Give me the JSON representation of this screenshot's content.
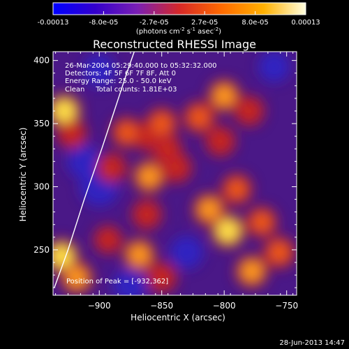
{
  "colorbar": {
    "tick_labels": [
      "-0.00013",
      "-8.0e-05",
      "-2.7e-05",
      "2.7e-05",
      "8.0e-05",
      "0.00013"
    ],
    "unit_label": "(photons cm",
    "unit_sup1": "-2",
    "unit_mid": " s",
    "unit_sup2": "-1",
    "unit_tail": " asec",
    "unit_sup3": "-2",
    "unit_close": ")",
    "colors": [
      "#0000ff",
      "#3300cc",
      "#7a1fb4",
      "#d62828",
      "#ff6a00",
      "#ffb000",
      "#ffffe0"
    ]
  },
  "chart_data": {
    "type": "heatmap",
    "title": "Reconstructed RHESSI Image",
    "xlabel": "Heliocentric X (arcsec)",
    "ylabel": "Heliocentric Y (arcsec)",
    "xlim": [
      -937,
      -742
    ],
    "ylim": [
      214,
      407
    ],
    "x_ticks": [
      -900,
      -850,
      -800,
      -750
    ],
    "x_tick_labels": [
      "−900",
      "−850",
      "−800",
      "−750"
    ],
    "y_ticks": [
      250,
      300,
      350,
      400
    ],
    "y_tick_labels": [
      "250",
      "300",
      "350",
      "400"
    ],
    "annotations": [
      "26-Mar-2004 05:29:40.000 to 05:32:32.000",
      "Detectors: 4F 5F 6F 7F 8F, Att 0",
      "Energy Range: 25.0 - 50.0 keV",
      "Clean     Total counts: 1.81E+03"
    ],
    "peak_label": "Position of Peak = [-932,362]",
    "peak_position": [
      -932,
      362
    ],
    "limb_curve": [
      [
        -936,
        220
      ],
      [
        -925,
        250
      ],
      [
        -912,
        290
      ],
      [
        -898,
        330
      ],
      [
        -888,
        360
      ],
      [
        -878,
        390
      ],
      [
        -872,
        407
      ]
    ],
    "blobs": [
      {
        "x": -928,
        "y": 360,
        "level": 0.95
      },
      {
        "x": -922,
        "y": 342,
        "level": 0.7
      },
      {
        "x": -930,
        "y": 245,
        "level": 0.95
      },
      {
        "x": -918,
        "y": 228,
        "level": 0.85
      },
      {
        "x": -890,
        "y": 315,
        "level": 0.7
      },
      {
        "x": -878,
        "y": 343,
        "level": 0.75
      },
      {
        "x": -862,
        "y": 340,
        "level": 0.65
      },
      {
        "x": -850,
        "y": 350,
        "level": 0.8
      },
      {
        "x": -846,
        "y": 330,
        "level": 0.7
      },
      {
        "x": -860,
        "y": 308,
        "level": 0.85
      },
      {
        "x": -838,
        "y": 315,
        "level": 0.7
      },
      {
        "x": -820,
        "y": 355,
        "level": 0.8
      },
      {
        "x": -800,
        "y": 372,
        "level": 0.85
      },
      {
        "x": -780,
        "y": 360,
        "level": 0.7
      },
      {
        "x": -803,
        "y": 336,
        "level": 0.7
      },
      {
        "x": -790,
        "y": 298,
        "level": 0.75
      },
      {
        "x": -812,
        "y": 282,
        "level": 0.85
      },
      {
        "x": -797,
        "y": 265,
        "level": 0.95
      },
      {
        "x": -770,
        "y": 272,
        "level": 0.75
      },
      {
        "x": -756,
        "y": 248,
        "level": 0.8
      },
      {
        "x": -778,
        "y": 233,
        "level": 0.85
      },
      {
        "x": -862,
        "y": 278,
        "level": 0.7
      },
      {
        "x": -868,
        "y": 246,
        "level": 0.85
      },
      {
        "x": -850,
        "y": 228,
        "level": 0.7
      },
      {
        "x": -893,
        "y": 258,
        "level": 0.6
      }
    ],
    "dark_blobs": [
      {
        "x": -900,
        "y": 300,
        "level": 0.85
      },
      {
        "x": -912,
        "y": 320,
        "level": 0.6
      },
      {
        "x": -875,
        "y": 222,
        "level": 0.6
      },
      {
        "x": -830,
        "y": 248,
        "level": 0.55
      },
      {
        "x": -900,
        "y": 392,
        "level": 0.5
      },
      {
        "x": -760,
        "y": 395,
        "level": 0.45
      }
    ]
  },
  "footer": {
    "date_stamp": "28-Jun-2013 14:47"
  }
}
